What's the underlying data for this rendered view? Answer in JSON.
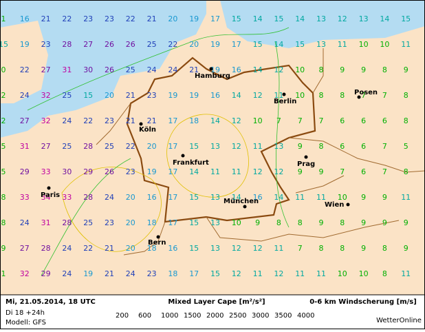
{
  "map": {
    "date": "Mi, 21.05.2014, 18 UTC",
    "run": "Di 18 +24h",
    "model": "Modell: GFS",
    "cape_label": "Mixed Layer Cape [m²/s²]",
    "shear_label": "0-6 km Windscherung [m/s]",
    "brand": "WetterOnline",
    "cape_legend": [
      {
        "value": 200,
        "color": "#00c000"
      },
      {
        "value": 600,
        "color": "#b8d800"
      },
      {
        "value": 1000,
        "color": "#e0d800"
      },
      {
        "value": 1500,
        "color": "#e0b000"
      },
      {
        "value": 2000,
        "color": "#e08000"
      },
      {
        "value": 2500,
        "color": "#e00000"
      },
      {
        "value": 3000,
        "color": "#d000d0"
      },
      {
        "value": 3500,
        "color": "#a000d0"
      },
      {
        "value": 4000,
        "color": "#8000a0"
      }
    ],
    "cities": [
      "Hamburg",
      "Berlin",
      "Posen",
      "Köln",
      "Frankfurt",
      "Prag",
      "Paris",
      "München",
      "Wien",
      "Bern"
    ],
    "shear_grid": [
      [
        1,
        16,
        21,
        22,
        23,
        23,
        22,
        21,
        20,
        19,
        17,
        15,
        14,
        15,
        14,
        13,
        12,
        13,
        14,
        15
      ],
      [
        15,
        19,
        23,
        28,
        27,
        26,
        26,
        25,
        22,
        20,
        19,
        17,
        15,
        14,
        15,
        13,
        11,
        10,
        10,
        11
      ],
      [
        0,
        22,
        27,
        31,
        30,
        26,
        25,
        24,
        24,
        21,
        19,
        16,
        14,
        12,
        10,
        8,
        9,
        9,
        8,
        9
      ],
      [
        2,
        24,
        32,
        25,
        15,
        20,
        21,
        23,
        19,
        19,
        16,
        14,
        12,
        11,
        10,
        8,
        8,
        7,
        7,
        8
      ],
      [
        2,
        27,
        32,
        24,
        22,
        23,
        21,
        21,
        17,
        18,
        14,
        12,
        10,
        7,
        7,
        7,
        6,
        6,
        6,
        8
      ],
      [
        5,
        31,
        27,
        25,
        28,
        25,
        22,
        20,
        17,
        15,
        13,
        12,
        11,
        13,
        9,
        8,
        6,
        6,
        7,
        5
      ],
      [
        5,
        29,
        33,
        30,
        29,
        26,
        23,
        19,
        17,
        14,
        11,
        11,
        12,
        12,
        9,
        9,
        7,
        6,
        7,
        8
      ],
      [
        8,
        33,
        34,
        33,
        28,
        24,
        20,
        16,
        17,
        15,
        13,
        14,
        16,
        14,
        11,
        11,
        10,
        9,
        9,
        11
      ],
      [
        8,
        24,
        31,
        28,
        25,
        23,
        20,
        18,
        17,
        15,
        13,
        10,
        9,
        8,
        8,
        9,
        8,
        9,
        9,
        9
      ],
      [
        9,
        27,
        28,
        24,
        22,
        21,
        20,
        18,
        16,
        15,
        13,
        12,
        12,
        11,
        7,
        8,
        8,
        9,
        8,
        9
      ],
      [
        1,
        32,
        29,
        24,
        19,
        21,
        24,
        23,
        18,
        17,
        15,
        12,
        11,
        12,
        11,
        11,
        10,
        10,
        8,
        11
      ]
    ]
  }
}
